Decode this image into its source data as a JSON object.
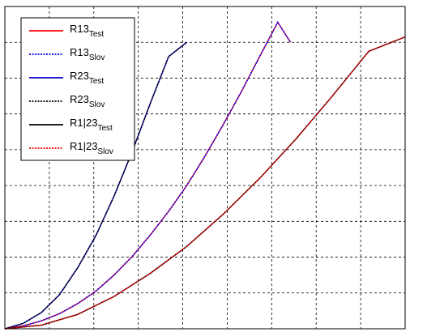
{
  "chart_data": {
    "type": "line",
    "title": "",
    "xlabel": "",
    "ylabel": "",
    "xlim": [
      0,
      11
    ],
    "ylim": [
      0,
      9
    ],
    "grid": true,
    "legend_position": "top-left",
    "series": [
      {
        "name": "R13",
        "sub": "Test",
        "color": "#ff0000",
        "style": "solid",
        "x": [
          0,
          0.5,
          1,
          1.5,
          2,
          2.5,
          3,
          3.5,
          4,
          4.5,
          5,
          5.5,
          6,
          6.5,
          7,
          7.5,
          7.85
        ],
        "y": [
          0,
          0.08,
          0.22,
          0.42,
          0.7,
          1.05,
          1.5,
          2.02,
          2.62,
          3.28,
          4.0,
          4.82,
          5.7,
          6.62,
          7.6,
          8.56,
          8.0
        ]
      },
      {
        "name": "R13",
        "sub": "Slov",
        "color": "#0000ff",
        "style": "dotted",
        "x": [
          0,
          0.5,
          1,
          1.5,
          2,
          2.5,
          3,
          3.5,
          4,
          4.5,
          5,
          5.5,
          6,
          6.5,
          7,
          7.5,
          7.85
        ],
        "y": [
          0,
          0.08,
          0.22,
          0.42,
          0.7,
          1.05,
          1.5,
          2.02,
          2.62,
          3.28,
          4.0,
          4.82,
          5.7,
          6.62,
          7.6,
          8.56,
          8.0
        ]
      },
      {
        "name": "R23",
        "sub": "Test",
        "color": "#0000cc",
        "style": "solid",
        "x": [
          0,
          0.5,
          1,
          1.5,
          2,
          2.5,
          3,
          3.5,
          4,
          4.5,
          5
        ],
        "y": [
          0,
          0.15,
          0.45,
          0.95,
          1.7,
          2.6,
          3.7,
          4.95,
          6.3,
          7.6,
          8.0
        ]
      },
      {
        "name": "R23",
        "sub": "Slov",
        "color": "#000000",
        "style": "dotted",
        "x": [
          0,
          0.5,
          1,
          1.5,
          2,
          2.5,
          3,
          3.5,
          4,
          4.5,
          5
        ],
        "y": [
          0,
          0.15,
          0.45,
          0.95,
          1.7,
          2.6,
          3.7,
          4.95,
          6.3,
          7.6,
          8.0
        ]
      },
      {
        "name": "R1|23",
        "sub": "Test",
        "color": "#000000",
        "style": "solid",
        "x": [
          0,
          1,
          2,
          3,
          4,
          5,
          6,
          7,
          8,
          9,
          10,
          11
        ],
        "y": [
          0,
          0.1,
          0.4,
          0.9,
          1.55,
          2.3,
          3.2,
          4.2,
          5.3,
          6.5,
          7.75,
          8.15
        ]
      },
      {
        "name": "R1|23",
        "sub": "Slov",
        "color": "#ff0000",
        "style": "dotted",
        "x": [
          0,
          1,
          2,
          3,
          4,
          5,
          6,
          7,
          8,
          9,
          10,
          11
        ],
        "y": [
          0,
          0.1,
          0.4,
          0.9,
          1.55,
          2.3,
          3.2,
          4.2,
          5.3,
          6.5,
          7.75,
          8.15
        ]
      }
    ]
  }
}
